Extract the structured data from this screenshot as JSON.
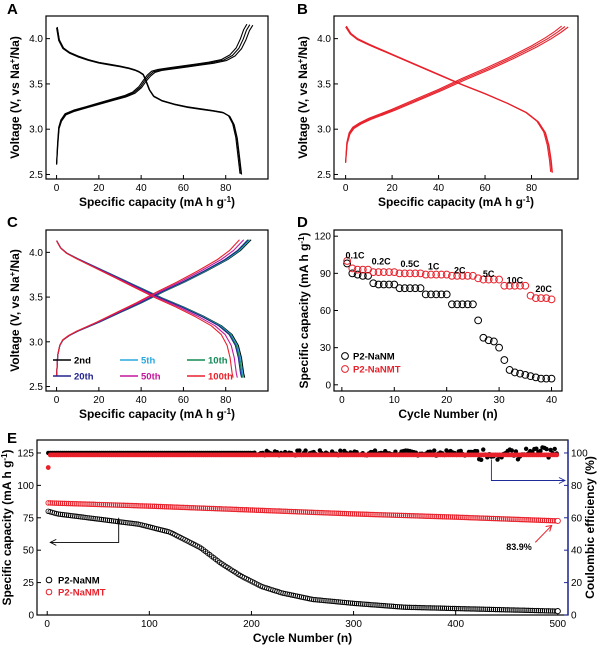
{
  "chart_data": [
    {
      "id": "A",
      "type": "line",
      "xlabel": "Specific capacity (mA h g",
      "xlabel_sup": "-1",
      "xlabel_end": ")",
      "ylabel": "Voltage (V, vs Na",
      "ylabel_sup": "+",
      "ylabel_end": "/Na)",
      "xlim": [
        -5,
        100
      ],
      "ylim": [
        2.45,
        4.25
      ],
      "xticks": [
        0,
        20,
        40,
        60,
        80
      ],
      "yticks": [
        2.5,
        3.0,
        3.5,
        4.0
      ],
      "color": "#000000",
      "series": [
        {
          "name": "discharge",
          "x": [
            0,
            1,
            3,
            6,
            10,
            15,
            20,
            25,
            30,
            34,
            37,
            39,
            41,
            42,
            44,
            46,
            50,
            56,
            62,
            68,
            74,
            79,
            82,
            84,
            85.5,
            86.5,
            87.5
          ],
          "y": [
            4.12,
            3.98,
            3.89,
            3.84,
            3.8,
            3.76,
            3.73,
            3.71,
            3.69,
            3.67,
            3.65,
            3.63,
            3.6,
            3.55,
            3.43,
            3.36,
            3.31,
            3.27,
            3.24,
            3.22,
            3.2,
            3.18,
            3.14,
            3.05,
            2.9,
            2.7,
            2.5
          ]
        },
        {
          "name": "charge",
          "x": [
            0,
            0.5,
            1,
            2,
            4,
            8,
            14,
            20,
            26,
            32,
            36,
            39,
            41,
            42,
            43,
            45,
            48,
            54,
            60,
            66,
            72,
            78,
            82,
            85,
            87,
            88.5,
            90
          ],
          "y": [
            2.62,
            2.85,
            3.02,
            3.1,
            3.17,
            3.21,
            3.25,
            3.29,
            3.33,
            3.37,
            3.41,
            3.47,
            3.54,
            3.57,
            3.6,
            3.64,
            3.66,
            3.68,
            3.7,
            3.72,
            3.74,
            3.77,
            3.82,
            3.9,
            4.0,
            4.1,
            4.16
          ]
        }
      ]
    },
    {
      "id": "B",
      "type": "line",
      "xlabel": "Specific capacity (mA h g",
      "xlabel_sup": "-1",
      "xlabel_end": ")",
      "ylabel": "Voltage (V, vs Na",
      "ylabel_sup": "+",
      "ylabel_end": "/Na)",
      "xlim": [
        -5,
        100
      ],
      "ylim": [
        2.45,
        4.25
      ],
      "xticks": [
        0,
        20,
        40,
        60,
        80
      ],
      "yticks": [
        2.5,
        3.0,
        3.5,
        4.0
      ],
      "color": "#e8212b",
      "series": [
        {
          "name": "discharge",
          "x": [
            0,
            2,
            5,
            10,
            20,
            30,
            40,
            50,
            60,
            70,
            78,
            83,
            86,
            87.5,
            88.5,
            89
          ],
          "y": [
            4.13,
            4.05,
            3.99,
            3.93,
            3.82,
            3.71,
            3.6,
            3.49,
            3.39,
            3.28,
            3.18,
            3.08,
            2.96,
            2.82,
            2.65,
            2.52
          ]
        },
        {
          "name": "charge",
          "x": [
            0,
            0.5,
            1.5,
            3,
            6,
            10,
            20,
            30,
            40,
            50,
            60,
            70,
            80,
            86,
            90,
            93
          ],
          "y": [
            2.64,
            2.85,
            2.96,
            3.02,
            3.07,
            3.12,
            3.22,
            3.33,
            3.44,
            3.56,
            3.67,
            3.79,
            3.92,
            4.01,
            4.08,
            4.14
          ]
        }
      ]
    },
    {
      "id": "C",
      "type": "line",
      "xlabel": "Specific capacity (mA h g",
      "xlabel_sup": "-1",
      "xlabel_end": ")",
      "ylabel": "Voltage (V, vs Na",
      "ylabel_sup": "+",
      "ylabel_end": "/Na)",
      "xlim": [
        -5,
        100
      ],
      "ylim": [
        2.45,
        4.25
      ],
      "xticks": [
        0,
        20,
        40,
        60,
        80
      ],
      "yticks": [
        2.5,
        3.0,
        3.5,
        4.0
      ],
      "legend": [
        {
          "name": "2nd",
          "color": "#000000",
          "cap": 89
        },
        {
          "name": "5th",
          "color": "#2aa8e0",
          "cap": 88.5
        },
        {
          "name": "10th",
          "color": "#128a55",
          "cap": 88
        },
        {
          "name": "20th",
          "color": "#23238e",
          "cap": 87.5
        },
        {
          "name": "50th",
          "color": "#c2189b",
          "cap": 85.5
        },
        {
          "name": "100th",
          "color": "#e8212b",
          "cap": 83.5
        }
      ],
      "discharge_shape": {
        "f": [
          0,
          0.022,
          0.056,
          0.112,
          0.225,
          0.337,
          0.449,
          0.562,
          0.674,
          0.787,
          0.876,
          0.933,
          0.966,
          0.983,
          0.994,
          1.0
        ],
        "y": [
          4.13,
          4.05,
          3.99,
          3.93,
          3.82,
          3.71,
          3.6,
          3.49,
          3.39,
          3.28,
          3.18,
          3.08,
          2.96,
          2.82,
          2.65,
          2.6
        ]
      },
      "charge_shape": {
        "f": [
          0,
          0.006,
          0.017,
          0.033,
          0.066,
          0.11,
          0.22,
          0.33,
          0.44,
          0.55,
          0.66,
          0.77,
          0.88,
          0.945,
          1.0
        ],
        "y": [
          2.62,
          2.85,
          2.96,
          3.02,
          3.07,
          3.12,
          3.22,
          3.33,
          3.44,
          3.56,
          3.67,
          3.79,
          3.92,
          4.02,
          4.14
        ]
      }
    },
    {
      "id": "D",
      "type": "scatter",
      "xlabel": "Cycle Number (n)",
      "ylabel": "Specific capacity (mA h g",
      "ylabel_sup": "-1",
      "ylabel_end": ")",
      "xlim": [
        -1.5,
        42
      ],
      "ylim": [
        -5,
        125
      ],
      "xticks": [
        0,
        10,
        20,
        30,
        40
      ],
      "yticks": [
        0,
        30,
        60,
        90,
        120
      ],
      "rate_labels": [
        {
          "text": "0.1C",
          "x": 2.5,
          "y": 102
        },
        {
          "text": "0.2C",
          "x": 7.5,
          "y": 97
        },
        {
          "text": "0.5C",
          "x": 13,
          "y": 95
        },
        {
          "text": "1C",
          "x": 17.5,
          "y": 93
        },
        {
          "text": "2C",
          "x": 22.5,
          "y": 90
        },
        {
          "text": "5C",
          "x": 28,
          "y": 87
        },
        {
          "text": "10C",
          "x": 33,
          "y": 82
        },
        {
          "text": "20C",
          "x": 38.5,
          "y": 75
        }
      ],
      "series": [
        {
          "name": "P2-NaNM",
          "color": "#000000",
          "values": [
            98,
            90,
            89,
            88,
            88,
            82,
            81,
            81,
            81,
            81,
            78,
            78,
            78,
            78,
            78,
            73,
            73,
            73,
            73,
            73,
            65,
            65,
            65,
            65,
            65,
            52,
            38,
            36,
            35,
            30,
            20,
            12,
            10,
            9,
            8,
            7,
            6,
            5,
            5,
            5
          ]
        },
        {
          "name": "P2-NaNMT",
          "color": "#e8212b",
          "values": [
            100,
            94,
            93,
            93,
            93,
            91,
            91,
            91,
            91,
            91,
            90,
            90,
            90,
            90,
            90,
            89,
            89,
            89,
            89,
            89,
            88,
            88,
            88,
            88,
            88,
            86,
            85,
            85,
            85,
            85,
            80,
            80,
            80,
            80,
            80,
            72,
            70,
            70,
            70,
            69
          ]
        }
      ]
    },
    {
      "id": "E",
      "type": "scatter",
      "xlabel": "Cycle Number (n)",
      "ylabel": "Specific capacity (mA h g",
      "ylabel_sup": "-1",
      "ylabel_end": ")",
      "y2label": "Coulombic efficiency (%)",
      "xlim": [
        -10,
        510
      ],
      "ylim": [
        0,
        135
      ],
      "y2lim": [
        0,
        108
      ],
      "xticks": [
        0,
        100,
        200,
        300,
        400,
        500
      ],
      "yticks": [
        0,
        25,
        50,
        75,
        100,
        125
      ],
      "y2ticks": [
        0,
        20,
        40,
        60,
        80,
        100
      ],
      "retention_label": "83.9%",
      "legend": [
        {
          "name": "P2-NaNM",
          "color": "#000000"
        },
        {
          "name": "P2-NaNMT",
          "color": "#e8212b"
        }
      ],
      "capacity_NaNM": {
        "cycle": [
          1,
          10,
          30,
          60,
          90,
          120,
          150,
          170,
          190,
          210,
          230,
          260,
          300,
          350,
          400,
          450,
          500
        ],
        "value": [
          80,
          78,
          76,
          73,
          70,
          64,
          52,
          40,
          30,
          22,
          17,
          12,
          9,
          6,
          5,
          4,
          3
        ]
      },
      "capacity_NaNMT": {
        "cycle": [
          1,
          100,
          200,
          300,
          400,
          500
        ],
        "value": [
          86.5,
          84,
          81,
          78,
          75.5,
          72.6
        ]
      },
      "ce_NaNM": {
        "mean": 100,
        "noise_start": 200,
        "noise_amp": 1.6,
        "late_start": 420,
        "late_amp": 3.0
      },
      "ce_NaNMT": {
        "mean": 98.8,
        "first": 91
      }
    }
  ]
}
